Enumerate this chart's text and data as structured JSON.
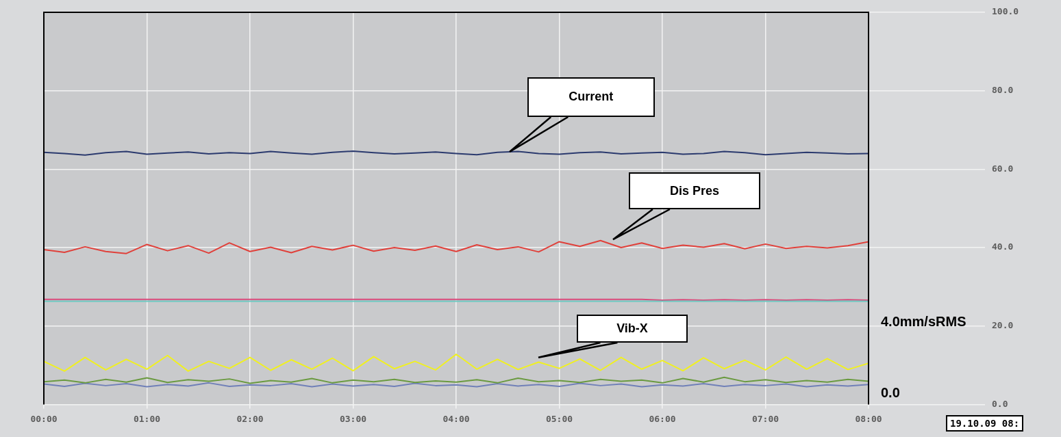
{
  "chart_data": {
    "type": "line",
    "x": [
      0,
      0.2,
      0.4,
      0.6,
      0.8,
      1,
      1.2,
      1.4,
      1.6,
      1.8,
      2,
      2.2,
      2.4,
      2.6,
      2.8,
      3,
      3.2,
      3.4,
      3.6,
      3.8,
      4,
      4.2,
      4.4,
      4.6,
      4.8,
      5,
      5.2,
      5.4,
      5.6,
      5.8,
      6,
      6.2,
      6.4,
      6.6,
      6.8,
      7,
      7.2,
      7.4,
      7.6,
      7.8,
      8
    ],
    "series": [
      {
        "color": "#2b3a6e",
        "values": [
          64.3,
          64.0,
          63.6,
          64.2,
          64.5,
          63.8,
          64.1,
          64.4,
          63.9,
          64.2,
          64.0,
          64.5,
          64.1,
          63.8,
          64.3,
          64.6,
          64.2,
          63.9,
          64.1,
          64.4,
          64.0,
          63.7,
          64.3,
          64.5,
          64.0,
          63.8,
          64.2,
          64.4,
          63.9,
          64.1,
          64.3,
          63.8,
          64.0,
          64.5,
          64.2,
          63.7,
          64.0,
          64.3,
          64.1,
          63.9,
          64.0
        ]
      },
      {
        "color": "#e0403a",
        "values": [
          39.5,
          38.8,
          40.2,
          39.0,
          38.5,
          40.8,
          39.2,
          40.5,
          38.6,
          41.2,
          39.0,
          40.1,
          38.7,
          40.3,
          39.4,
          40.6,
          39.1,
          40.0,
          39.3,
          40.4,
          39.0,
          40.7,
          39.5,
          40.2,
          38.9,
          41.5,
          40.3,
          41.8,
          40.0,
          41.2,
          39.8,
          40.6,
          40.1,
          41.0,
          39.7,
          40.9,
          39.8,
          40.3,
          39.9,
          40.5,
          41.5
        ]
      },
      {
        "color": "#6cc8c0",
        "values": [
          26.3,
          26.3,
          26.3,
          26.3,
          26.3,
          26.3,
          26.3,
          26.3,
          26.3,
          26.3,
          26.3,
          26.3,
          26.3,
          26.3,
          26.3,
          26.3,
          26.3,
          26.3,
          26.3,
          26.3,
          26.3,
          26.3,
          26.3,
          26.3,
          26.3,
          26.3,
          26.3,
          26.3,
          26.3,
          26.3,
          26.3,
          26.3,
          26.3,
          26.3,
          26.3,
          26.3,
          26.3,
          26.3,
          26.3,
          26.3,
          26.3
        ]
      },
      {
        "color": "#d94a7a",
        "values": [
          26.8,
          26.8,
          26.8,
          26.8,
          26.8,
          26.8,
          26.8,
          26.8,
          26.8,
          26.8,
          26.8,
          26.8,
          26.8,
          26.8,
          26.8,
          26.8,
          26.8,
          26.8,
          26.8,
          26.8,
          26.8,
          26.8,
          26.8,
          26.8,
          26.8,
          26.8,
          26.8,
          26.8,
          26.8,
          26.8,
          26.6,
          26.7,
          26.6,
          26.7,
          26.6,
          26.7,
          26.6,
          26.7,
          26.6,
          26.7,
          26.6
        ]
      },
      {
        "color": "#f0f020",
        "values": [
          11,
          8.5,
          12,
          8.8,
          11.5,
          9,
          12.5,
          8.5,
          11,
          9.2,
          12,
          8.7,
          11.4,
          9,
          11.8,
          8.6,
          12.2,
          9.1,
          11,
          8.8,
          12.8,
          9,
          11.5,
          8.9,
          10.8,
          9.2,
          11.6,
          8.7,
          12,
          9,
          11.2,
          8.6,
          11.9,
          9.1,
          11.3,
          8.8,
          12.1,
          9,
          11.7,
          8.9,
          10.5
        ]
      },
      {
        "color": "#6a9a40",
        "values": [
          5.8,
          6.2,
          5.5,
          6.4,
          5.7,
          6.8,
          5.6,
          6.3,
          5.9,
          6.5,
          5.4,
          6.1,
          5.7,
          6.6,
          5.5,
          6.2,
          5.8,
          6.4,
          5.6,
          6.0,
          5.7,
          6.3,
          5.5,
          6.7,
          5.8,
          6.1,
          5.6,
          6.4,
          5.9,
          6.2,
          5.5,
          6.6,
          5.7,
          6.9,
          5.8,
          6.3,
          5.6,
          6.1,
          5.7,
          6.4,
          5.9
        ]
      },
      {
        "color": "#7080b8",
        "values": [
          5.2,
          4.6,
          5.4,
          4.8,
          5.3,
          4.5,
          5.1,
          4.7,
          5.5,
          4.6,
          5.0,
          4.8,
          5.3,
          4.5,
          5.2,
          4.7,
          5.1,
          4.6,
          5.4,
          4.8,
          5.0,
          4.5,
          5.3,
          4.7,
          5.1,
          4.6,
          5.4,
          4.8,
          5.2,
          4.5,
          5.0,
          4.7,
          5.3,
          4.6,
          5.1,
          4.8,
          5.2,
          4.5,
          5.0,
          4.7,
          5.1
        ]
      }
    ],
    "xlim": [
      0,
      8
    ],
    "xticks": [
      {
        "value": 0,
        "label": "00:00"
      },
      {
        "value": 1,
        "label": "01:00"
      },
      {
        "value": 2,
        "label": "02:00"
      },
      {
        "value": 3,
        "label": "03:00"
      },
      {
        "value": 4,
        "label": "04:00"
      },
      {
        "value": 5,
        "label": "05:00"
      },
      {
        "value": 6,
        "label": "06:00"
      },
      {
        "value": 7,
        "label": "07:00"
      },
      {
        "value": 8,
        "label": "08:00"
      }
    ],
    "ylim": [
      0,
      100
    ],
    "yticks": [
      {
        "value": 0,
        "label": "0.0"
      },
      {
        "value": 20,
        "label": "20.0"
      },
      {
        "value": 40,
        "label": "40.0"
      },
      {
        "value": 60,
        "label": "60.0"
      },
      {
        "value": 80,
        "label": "80.0"
      },
      {
        "value": 100,
        "label": "100.0"
      }
    ],
    "annotations": [
      "Current",
      "Dis Pres",
      "Vib-X",
      "4.0mm/sRMS",
      "0.0",
      "19.10.09 08:"
    ],
    "grid": true,
    "legend": false,
    "marker": "none",
    "line_style": "solid"
  }
}
